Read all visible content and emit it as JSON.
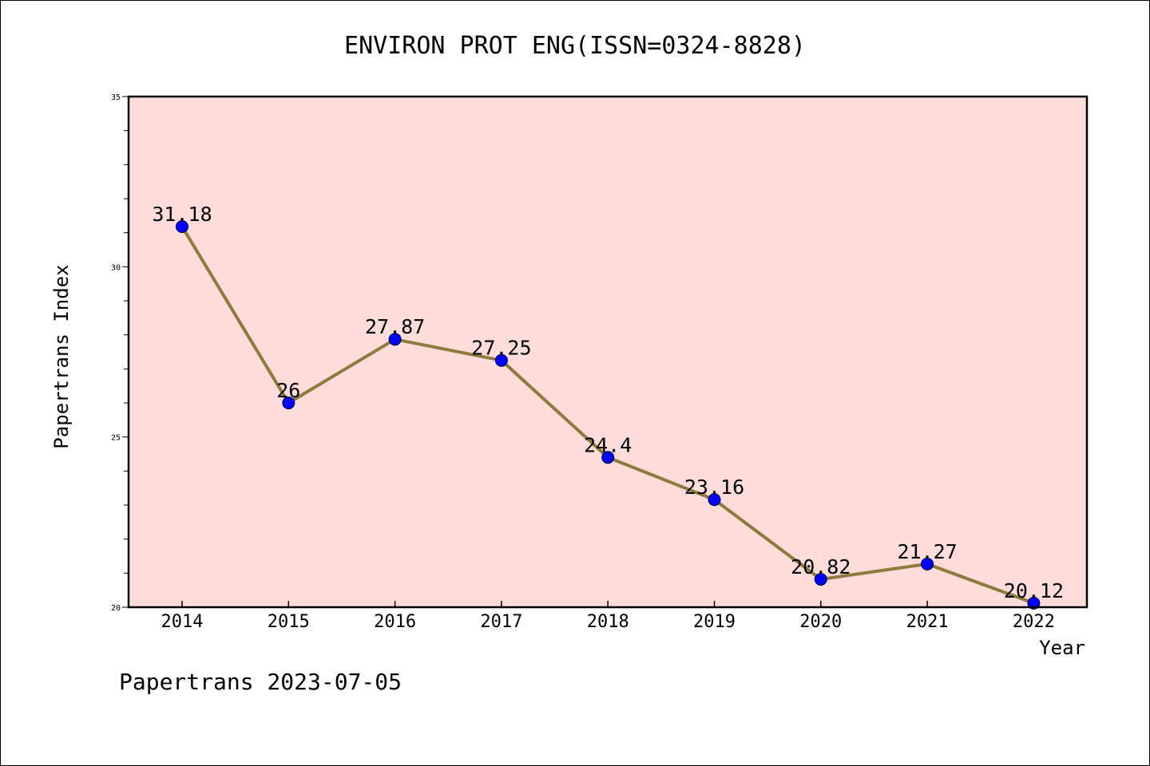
{
  "chart_data": {
    "type": "line",
    "title": "ENVIRON PROT ENG(ISSN=0324-8828)",
    "xlabel": "Year",
    "ylabel": "Papertrans Index",
    "categories": [
      "2014",
      "2015",
      "2016",
      "2017",
      "2018",
      "2019",
      "2020",
      "2021",
      "2022"
    ],
    "series": [
      {
        "values": [
          31.18,
          26,
          27.87,
          27.25,
          24.4,
          23.16,
          20.82,
          21.27,
          20.12
        ],
        "labels": [
          "31.18",
          "26",
          "27.87",
          "27.25",
          "24.4",
          "23.16",
          "20.82",
          "21.27",
          "20.12"
        ]
      }
    ],
    "ylim": [
      20,
      35
    ],
    "yticks": [
      "20",
      "25",
      "30",
      "35"
    ],
    "grid": false,
    "legend": "none",
    "colors": {
      "plot_background": "#fddcda",
      "line": "#8f7a3e",
      "marker": "#0000ff",
      "axis": "#000000"
    },
    "footer": "Papertrans 2023-07-05"
  }
}
